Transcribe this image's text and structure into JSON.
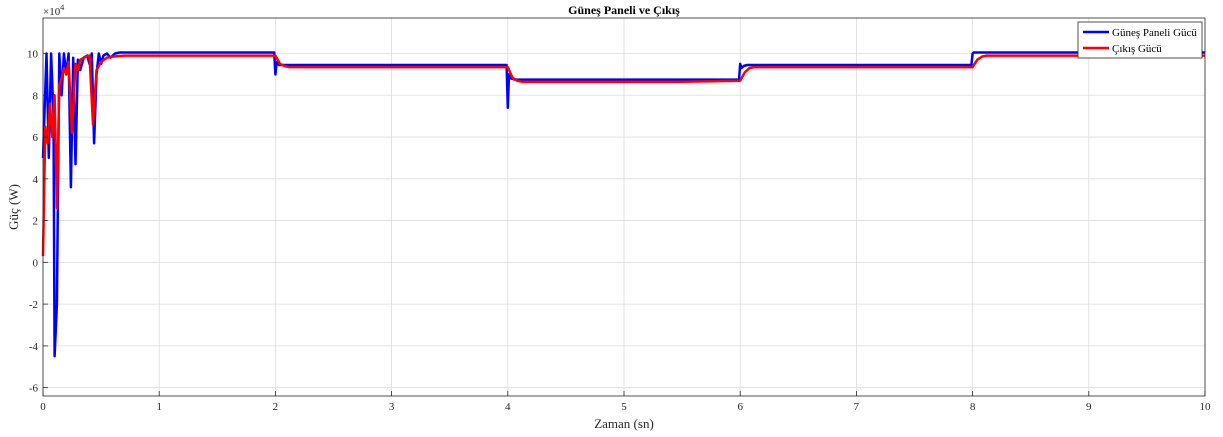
{
  "chart_data": {
    "type": "line",
    "title": "Güneş Paneli ve Çıkış",
    "xlabel": "Zaman (sn)",
    "ylabel": "Güç (W)",
    "y_exponent_label": "×10",
    "y_exponent_power": "4",
    "xlim": [
      0,
      10
    ],
    "ylim": [
      -6.4,
      11.7
    ],
    "x_ticks": [
      0,
      1,
      2,
      3,
      4,
      5,
      6,
      7,
      8,
      9,
      10
    ],
    "y_ticks": [
      -6,
      -4,
      -2,
      0,
      2,
      4,
      6,
      8,
      10
    ],
    "grid": true,
    "legend_position": "top-right",
    "series": [
      {
        "name": "Güneş Paneli Gücü",
        "color": "#0000ff",
        "x": [
          0,
          0.03,
          0.05,
          0.07,
          0.09,
          0.1,
          0.12,
          0.14,
          0.16,
          0.18,
          0.2,
          0.22,
          0.24,
          0.26,
          0.28,
          0.3,
          0.32,
          0.35,
          0.38,
          0.4,
          0.42,
          0.44,
          0.46,
          0.48,
          0.5,
          0.52,
          0.55,
          0.58,
          0.62,
          0.66,
          0.7,
          0.8,
          1.0,
          1.5,
          1.99,
          2.0,
          2.01,
          2.03,
          2.06,
          2.1,
          2.5,
          3.0,
          3.5,
          3.99,
          4.0,
          4.01,
          4.03,
          4.06,
          4.1,
          4.5,
          5.0,
          5.5,
          5.99,
          6.0,
          6.01,
          6.03,
          6.06,
          6.1,
          6.5,
          7.0,
          7.5,
          7.99,
          8.0,
          8.01,
          8.03,
          8.06,
          8.1,
          8.5,
          9.0,
          9.5,
          10.0
        ],
        "y": [
          5.0,
          10.0,
          5.0,
          10.0,
          7.0,
          -4.5,
          -2.0,
          10.0,
          8.0,
          10.0,
          9.0,
          10.0,
          3.6,
          9.8,
          4.7,
          9.7,
          9.2,
          9.8,
          9.9,
          9.5,
          10.0,
          5.7,
          9.0,
          10.0,
          9.5,
          9.9,
          10.0,
          9.8,
          10.0,
          10.05,
          10.05,
          10.05,
          10.05,
          10.05,
          10.05,
          9.0,
          9.6,
          9.45,
          9.45,
          9.45,
          9.45,
          9.45,
          9.45,
          9.45,
          7.4,
          9.0,
          8.8,
          8.75,
          8.75,
          8.75,
          8.75,
          8.75,
          8.75,
          9.5,
          9.3,
          9.4,
          9.45,
          9.45,
          9.45,
          9.45,
          9.45,
          9.45,
          10.0,
          10.05,
          10.05,
          10.05,
          10.05,
          10.05,
          10.05,
          10.05,
          10.05
        ]
      },
      {
        "name": "Çıkış Gücü",
        "color": "#ff0000",
        "x": [
          0,
          0.02,
          0.04,
          0.06,
          0.08,
          0.1,
          0.12,
          0.14,
          0.16,
          0.18,
          0.2,
          0.22,
          0.25,
          0.28,
          0.3,
          0.32,
          0.35,
          0.4,
          0.43,
          0.46,
          0.5,
          0.55,
          0.6,
          0.7,
          0.8,
          1.0,
          1.5,
          2.0,
          2.04,
          2.08,
          2.12,
          2.2,
          2.5,
          3.0,
          3.5,
          4.0,
          4.04,
          4.08,
          4.12,
          4.2,
          4.5,
          5.0,
          5.5,
          6.0,
          6.04,
          6.08,
          6.12,
          6.2,
          6.5,
          7.0,
          7.5,
          8.0,
          8.04,
          8.08,
          8.12,
          8.2,
          8.5,
          9.0,
          9.5,
          10.0
        ],
        "y": [
          0.3,
          6.5,
          5.7,
          7.6,
          6.0,
          8.0,
          2.6,
          8.5,
          8.8,
          9.3,
          9.0,
          9.6,
          6.2,
          9.5,
          9.2,
          9.7,
          9.8,
          9.9,
          6.6,
          9.2,
          9.6,
          9.8,
          9.85,
          9.9,
          9.9,
          9.9,
          9.9,
          9.9,
          9.5,
          9.4,
          9.35,
          9.35,
          9.35,
          9.35,
          9.35,
          9.35,
          8.85,
          8.7,
          8.65,
          8.65,
          8.65,
          8.65,
          8.65,
          8.7,
          9.1,
          9.3,
          9.35,
          9.35,
          9.35,
          9.35,
          9.35,
          9.35,
          9.7,
          9.85,
          9.9,
          9.9,
          9.9,
          9.9,
          9.9,
          9.9
        ]
      }
    ]
  }
}
